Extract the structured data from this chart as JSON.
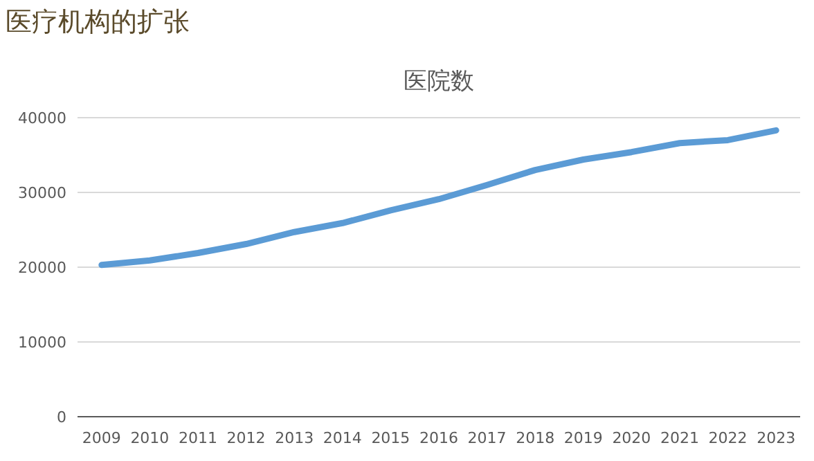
{
  "chart_data": {
    "type": "line",
    "title": "医疗机构的扩张",
    "subtitle": "医院数",
    "categories": [
      "2009",
      "2010",
      "2011",
      "2012",
      "2013",
      "2014",
      "2015",
      "2016",
      "2017",
      "2018",
      "2019",
      "2020",
      "2021",
      "2022",
      "2023"
    ],
    "series": [
      {
        "color": "#5b9bd5",
        "values": [
          20300,
          20900,
          21900,
          23100,
          24700,
          25900,
          27600,
          29100,
          31000,
          33000,
          34400,
          35400,
          36600,
          37000,
          38300
        ]
      }
    ],
    "ylim": [
      0,
      40000
    ],
    "yticks": [
      0,
      10000,
      20000,
      30000,
      40000
    ],
    "grid": "y",
    "marker": "none",
    "line_style": "solid"
  }
}
